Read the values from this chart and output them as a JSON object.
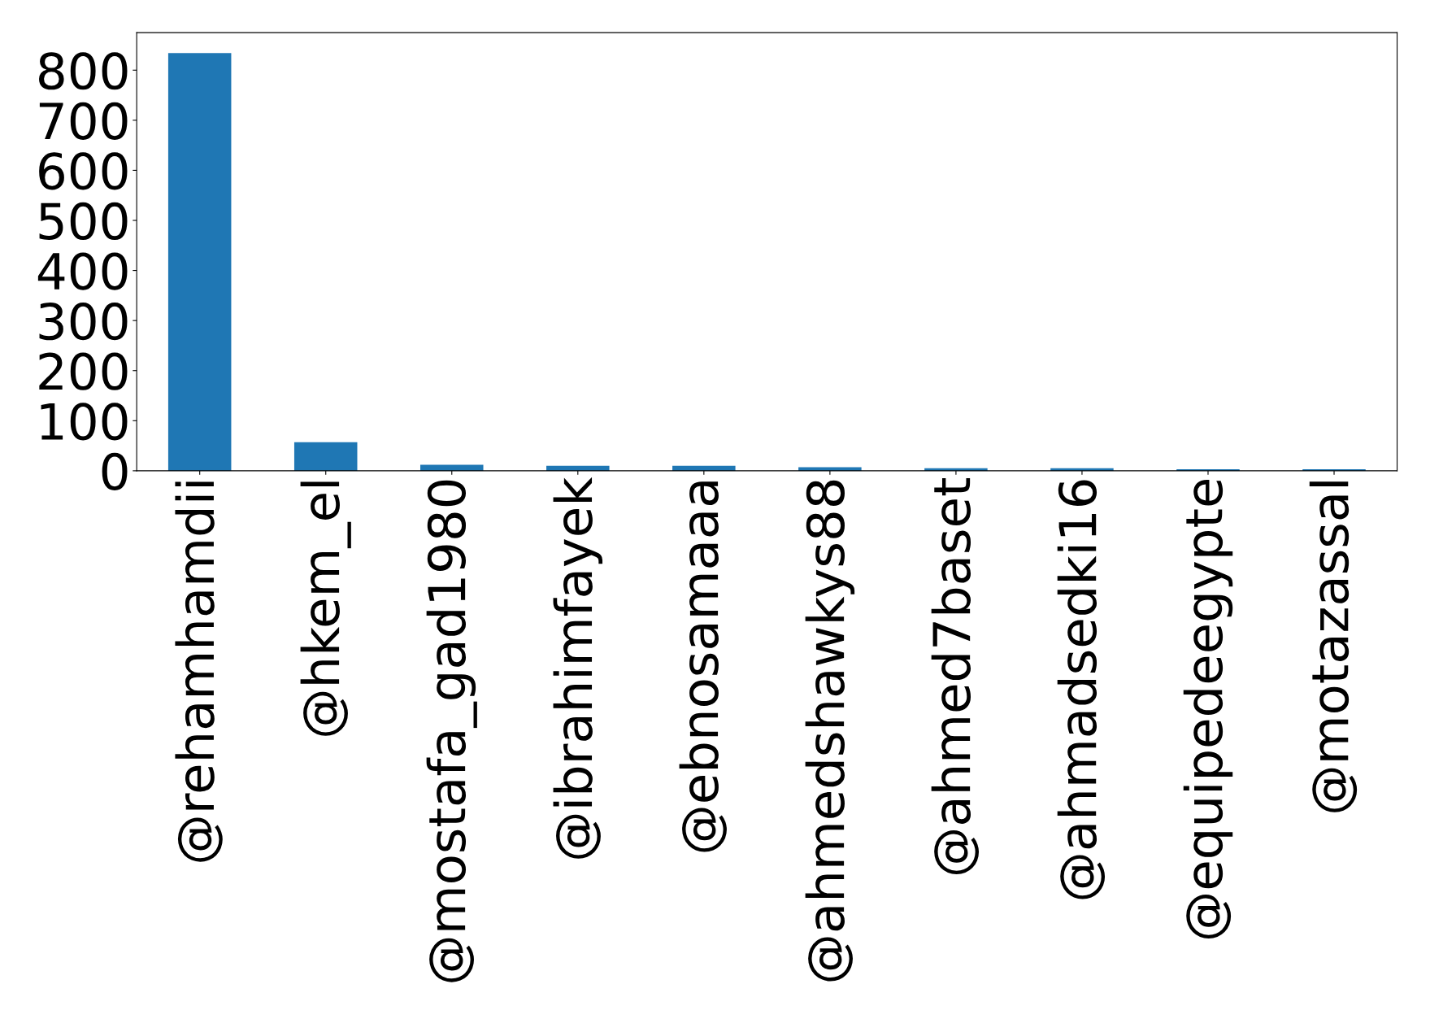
{
  "chart_data": {
    "type": "bar",
    "categories": [
      "@rehamhamdii",
      "@hkem_el",
      "@mostafa_gad1980",
      "@ibrahimfayek",
      "@ebnosamaaa",
      "@ahmedshawkys88",
      "@ahmed7baset",
      "@ahmadsedki16",
      "@equipedeegypte",
      "@motazassal"
    ],
    "values": [
      834,
      57,
      12,
      10,
      10,
      7,
      5,
      5,
      3,
      3
    ],
    "color": "#1f77b4",
    "ylim": [
      0,
      875
    ],
    "yticks": [
      0,
      100,
      200,
      300,
      400,
      500,
      600,
      700,
      800
    ],
    "grid": false
  }
}
